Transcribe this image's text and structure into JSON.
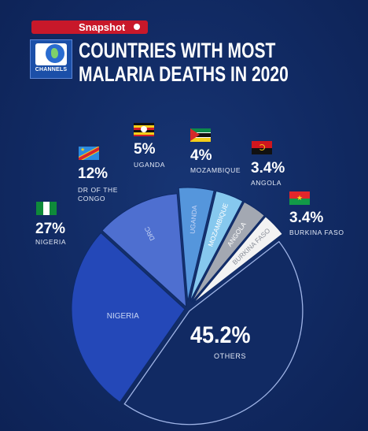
{
  "header": {
    "badge": "Snapshot",
    "logo_text": "CHANNELS",
    "title_line1": "COUNTRIES WITH MOST",
    "title_line2": "MALARIA DEATHS IN 2020"
  },
  "labels": {
    "nigeria": {
      "pct": "27%",
      "name": "NIGERIA"
    },
    "drc": {
      "pct": "12%",
      "name1": "DR OF THE",
      "name2": "CONGO"
    },
    "uganda": {
      "pct": "5%",
      "name": "UGANDA"
    },
    "mozambique": {
      "pct": "4%",
      "name": "MOZAMBIQUE"
    },
    "angola": {
      "pct": "3.4%",
      "name": "ANGOLA"
    },
    "burkina": {
      "pct": "3.4%",
      "name": "BURKINA FASO"
    },
    "others": {
      "pct": "45.2%",
      "name": "OTHERS"
    }
  },
  "chart_data": {
    "type": "pie",
    "title": "COUNTRIES WITH MOST MALARIA DEATHS IN 2020",
    "categories": [
      "NIGERIA",
      "DRC",
      "UGANDA",
      "MOZAMBIQUE",
      "ANGOLA",
      "BURKINA FASO",
      "OTHERS"
    ],
    "values": [
      27,
      12,
      5,
      4,
      3.4,
      3.4,
      45.2
    ],
    "slice_labels": [
      "NIGERIA",
      "DRC",
      "UGANDA",
      "MOZAMBIQUE",
      "ANGOLA",
      "BURKINA FASO",
      ""
    ],
    "colors": [
      "#2448b8",
      "#4e6fd0",
      "#5596dc",
      "#86c8ee",
      "#a3a8b2",
      "#f3f3f3",
      "#112a63"
    ]
  }
}
